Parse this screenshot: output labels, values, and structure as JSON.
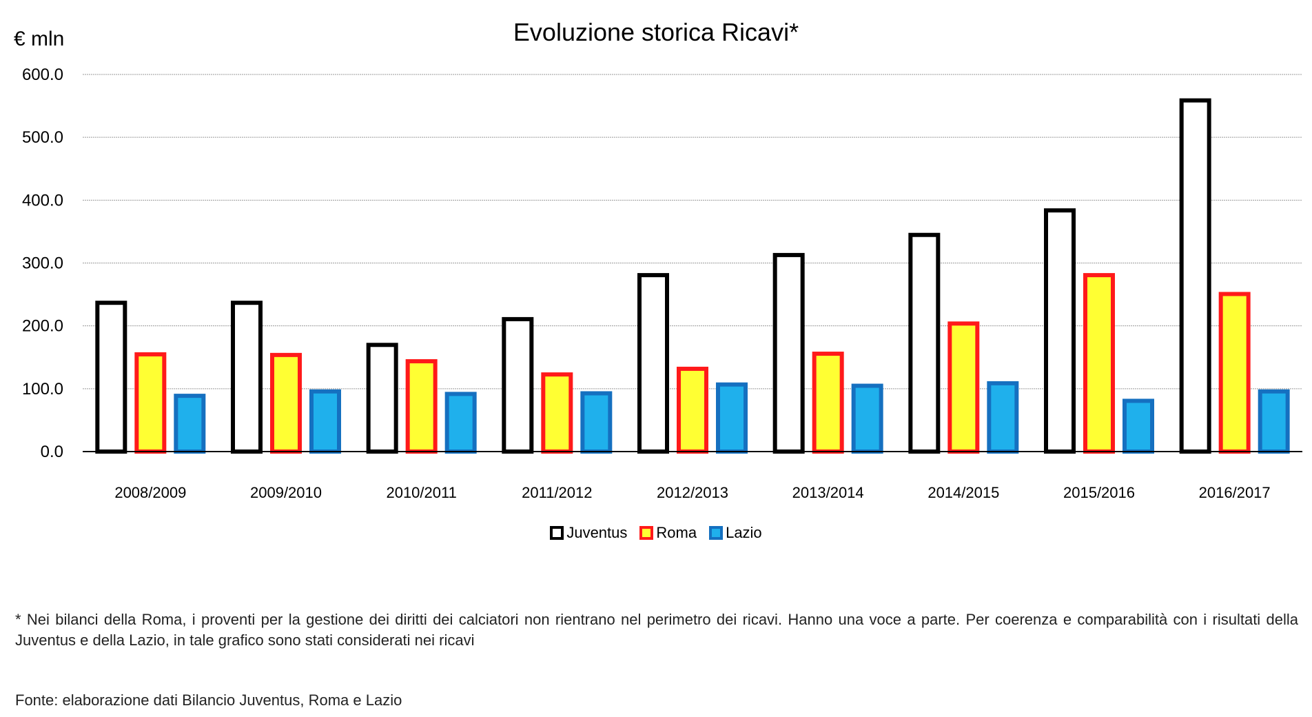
{
  "chart_data": {
    "type": "bar",
    "title": "Evoluzione storica Ricavi*",
    "ylabel": "€ mln",
    "xlabel": "",
    "ylim": [
      0,
      600
    ],
    "yticks": [
      "0.0",
      "100.0",
      "200.0",
      "300.0",
      "400.0",
      "500.0",
      "600.0"
    ],
    "grid": true,
    "legend_position": "bottom",
    "categories": [
      "2008/2009",
      "2009/2010",
      "2010/2011",
      "2011/2012",
      "2012/2013",
      "2013/2014",
      "2014/2015",
      "2015/2016",
      "2016/2017"
    ],
    "series": [
      {
        "name": "Juventus",
        "fill": "#ffffff",
        "stroke": "#000000",
        "values": [
          240,
          240,
          173,
          214,
          284,
          316,
          348,
          387,
          562
        ]
      },
      {
        "name": "Roma",
        "fill": "#ffff33",
        "stroke": "#ff1a1a",
        "values": [
          158,
          157,
          147,
          126,
          135,
          159,
          207,
          284,
          254
        ]
      },
      {
        "name": "Lazio",
        "fill": "#1fb0ec",
        "stroke": "#1570c0",
        "values": [
          92,
          99,
          95,
          96,
          110,
          108,
          112,
          84,
          99
        ]
      }
    ]
  },
  "footnote": "* Nei bilanci della Roma, i proventi per la gestione dei diritti dei calciatori non rientrano nel perimetro dei ricavi. Hanno una voce a parte. Per coerenza e comparabilità con i risultati della Juventus e della Lazio, in tale grafico sono stati considerati nei ricavi",
  "source": "Fonte: elaborazione dati Bilancio Juventus, Roma e Lazio"
}
